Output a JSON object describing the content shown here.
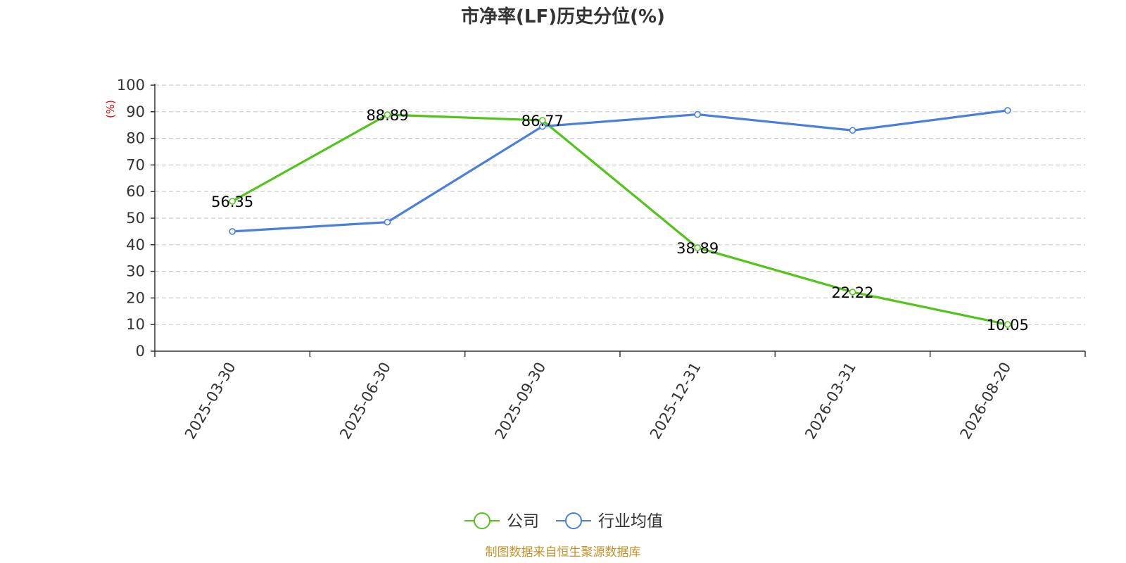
{
  "chart_data": {
    "type": "line",
    "title": "市净率(LF)历史分位(%)",
    "ylabel": "(%)",
    "xlabel": "",
    "categories": [
      "2025-03-30",
      "2025-06-30",
      "2025-09-30",
      "2025-12-31",
      "2026-03-31",
      "2026-08-20"
    ],
    "ylim": [
      0,
      100
    ],
    "yticks": [
      0,
      10,
      20,
      30,
      40,
      50,
      60,
      70,
      80,
      90,
      100
    ],
    "grid": true,
    "legend_position": "bottom-center",
    "series": [
      {
        "name": "公司",
        "color": "#52c41a",
        "values": [
          56.35,
          88.89,
          86.77,
          38.89,
          22.22,
          10.05
        ],
        "labels": [
          "56.35",
          "88.89",
          "86.77",
          "38.89",
          "22.22",
          "10.05"
        ],
        "show_labels": true
      },
      {
        "name": "行业均值",
        "color": "#4a7fdc",
        "values": [
          45.0,
          48.5,
          84.5,
          89.0,
          83.0,
          90.5
        ],
        "show_labels": false
      }
    ]
  },
  "source_text": "制图数据来自恒生聚源数据库",
  "colors": {
    "title": "#333333",
    "axis": "#333333",
    "grid": "#cccccc",
    "unit_label": "#e00000",
    "source": "#c8922a"
  }
}
